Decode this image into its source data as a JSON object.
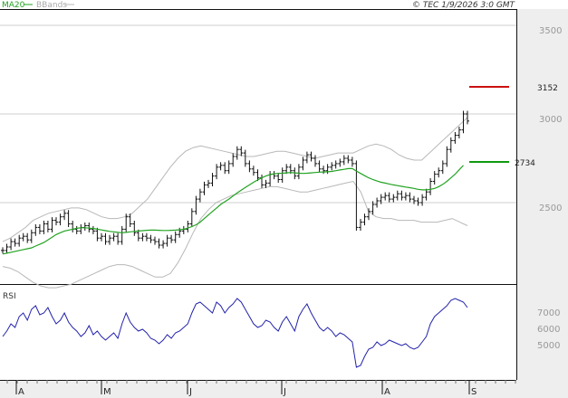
{
  "header": {
    "ma_label": "MA20",
    "bbands_label": "BBands",
    "copyright": "© TEC 1/9/2026 3:0 GMT"
  },
  "rsi_panel": {
    "label": "RSI"
  },
  "colors": {
    "ma20": "#22a322",
    "bbands": "#b8b8b8",
    "price_bar": "#111111",
    "rsi": "#2222aa",
    "resistance": "#cc1111",
    "support": "#119911",
    "grid": "#cfcfcf",
    "frame": "#111111",
    "axis_area": "#eeeeee"
  },
  "chart_data": [
    {
      "type": "line",
      "y_ticks": [
        "3500",
        "3000",
        "2500"
      ],
      "x_month_labels": [
        "A",
        "M",
        "J",
        "J",
        "A",
        "S"
      ],
      "levels": [
        {
          "label": "3152",
          "value": 3152,
          "color": "#cc1111"
        },
        {
          "label": "2734",
          "value": 2734,
          "color": "#119911"
        }
      ],
      "price_closes": [
        2230,
        2250,
        2280,
        2270,
        2300,
        2310,
        2290,
        2330,
        2360,
        2340,
        2380,
        2350,
        2400,
        2390,
        2420,
        2440,
        2380,
        2350,
        2340,
        2360,
        2370,
        2350,
        2340,
        2300,
        2310,
        2280,
        2300,
        2310,
        2280,
        2350,
        2420,
        2380,
        2330,
        2300,
        2310,
        2300,
        2290,
        2280,
        2260,
        2270,
        2300,
        2290,
        2320,
        2340,
        2350,
        2380,
        2450,
        2520,
        2560,
        2600,
        2610,
        2650,
        2700,
        2710,
        2680,
        2720,
        2760,
        2800,
        2780,
        2720,
        2690,
        2670,
        2640,
        2600,
        2610,
        2660,
        2650,
        2630,
        2680,
        2700,
        2680,
        2650,
        2700,
        2740,
        2770,
        2750,
        2720,
        2690,
        2680,
        2700,
        2710,
        2720,
        2730,
        2750,
        2740,
        2720,
        2360,
        2390,
        2420,
        2450,
        2490,
        2510,
        2530,
        2540,
        2520,
        2530,
        2550,
        2530,
        2540,
        2520,
        2510,
        2500,
        2530,
        2560,
        2620,
        2660,
        2680,
        2720,
        2800,
        2850,
        2880,
        2910,
        3000,
        2960
      ],
      "ma20": [
        2210,
        2215,
        2220,
        2225,
        2230,
        2235,
        2240,
        2245,
        2255,
        2265,
        2275,
        2290,
        2305,
        2320,
        2330,
        2340,
        2345,
        2350,
        2355,
        2358,
        2358,
        2356,
        2354,
        2350,
        2346,
        2342,
        2338,
        2335,
        2332,
        2330,
        2332,
        2335,
        2338,
        2340,
        2342,
        2344,
        2345,
        2345,
        2344,
        2343,
        2343,
        2344,
        2345,
        2347,
        2350,
        2356,
        2365,
        2375,
        2390,
        2410,
        2430,
        2450,
        2470,
        2490,
        2505,
        2520,
        2538,
        2555,
        2570,
        2585,
        2600,
        2615,
        2628,
        2640,
        2650,
        2658,
        2663,
        2665,
        2666,
        2668,
        2670,
        2668,
        2666,
        2665,
        2666,
        2668,
        2670,
        2672,
        2673,
        2674,
        2676,
        2680,
        2684,
        2688,
        2692,
        2692,
        2678,
        2665,
        2652,
        2640,
        2630,
        2622,
        2615,
        2610,
        2605,
        2600,
        2596,
        2592,
        2588,
        2584,
        2580,
        2575,
        2572,
        2572,
        2575,
        2580,
        2590,
        2603,
        2620,
        2640,
        2660,
        2685,
        2710
      ],
      "bb_upper": [
        2280,
        2300,
        2330,
        2360,
        2400,
        2420,
        2440,
        2450,
        2460,
        2470,
        2470,
        2460,
        2440,
        2420,
        2410,
        2410,
        2420,
        2440,
        2480,
        2520,
        2580,
        2640,
        2700,
        2750,
        2790,
        2810,
        2820,
        2810,
        2800,
        2790,
        2780,
        2770,
        2760,
        2760,
        2770,
        2780,
        2790,
        2790,
        2780,
        2770,
        2760,
        2750,
        2760,
        2770,
        2780,
        2780,
        2780,
        2800,
        2820,
        2830,
        2820,
        2800,
        2770,
        2750,
        2740,
        2740,
        2780,
        2820,
        2860,
        2900,
        2940,
        2980
      ],
      "bb_lower": [
        2140,
        2130,
        2110,
        2080,
        2050,
        2030,
        2020,
        2020,
        2030,
        2040,
        2060,
        2080,
        2100,
        2120,
        2140,
        2150,
        2150,
        2140,
        2120,
        2100,
        2080,
        2080,
        2100,
        2160,
        2240,
        2330,
        2410,
        2460,
        2500,
        2520,
        2540,
        2550,
        2560,
        2570,
        2580,
        2590,
        2590,
        2580,
        2570,
        2560,
        2560,
        2570,
        2580,
        2590,
        2600,
        2610,
        2620,
        2560,
        2450,
        2420,
        2410,
        2410,
        2400,
        2400,
        2400,
        2390,
        2390,
        2390,
        2400,
        2410,
        2390,
        2370
      ],
      "rsi": [
        55,
        58,
        62,
        60,
        66,
        68,
        64,
        70,
        72,
        67,
        68,
        71,
        66,
        62,
        64,
        68,
        63,
        60,
        58,
        55,
        57,
        61,
        56,
        58,
        55,
        53,
        55,
        57,
        54,
        62,
        68,
        63,
        60,
        58,
        59,
        57,
        54,
        53,
        51,
        53,
        56,
        54,
        57,
        58,
        60,
        62,
        68,
        73,
        74,
        72,
        70,
        68,
        74,
        72,
        68,
        71,
        73,
        76,
        74,
        70,
        66,
        62,
        60,
        61,
        64,
        63,
        60,
        58,
        63,
        66,
        62,
        58,
        66,
        70,
        73,
        68,
        64,
        60,
        58,
        60,
        58,
        55,
        57,
        56,
        54,
        52,
        38,
        39,
        44,
        48,
        49,
        52,
        50,
        51,
        53,
        52,
        51,
        50,
        51,
        49,
        48,
        49,
        52,
        55,
        62,
        66,
        68,
        70,
        72,
        75,
        76,
        75,
        74,
        71
      ]
    }
  ]
}
